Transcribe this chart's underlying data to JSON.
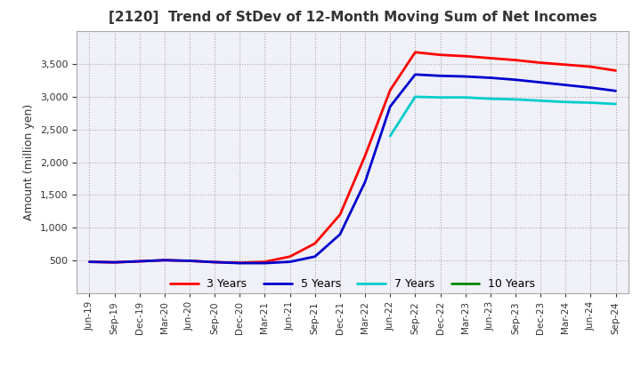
{
  "title": "[2120]  Trend of StDev of 12-Month Moving Sum of Net Incomes",
  "ylabel": "Amount (million yen)",
  "background_color": "#ffffff",
  "plot_bg_color": "#f0f0f8",
  "grid_color": "#aaaaaa",
  "legend_labels": [
    "3 Years",
    "5 Years",
    "7 Years",
    "10 Years"
  ],
  "legend_colors": [
    "#ff0000",
    "#0000cc",
    "#00cccc",
    "#008800"
  ],
  "x_labels": [
    "Jun-19",
    "Sep-19",
    "Dec-19",
    "Mar-20",
    "Jun-20",
    "Sep-20",
    "Dec-20",
    "Mar-21",
    "Jun-21",
    "Sep-21",
    "Dec-21",
    "Mar-22",
    "Jun-22",
    "Sep-22",
    "Dec-22",
    "Mar-23",
    "Jun-23",
    "Sep-23",
    "Dec-23",
    "Mar-24",
    "Jun-24",
    "Sep-24"
  ],
  "series_3y": [
    480,
    472,
    488,
    505,
    495,
    475,
    465,
    480,
    560,
    760,
    1200,
    2100,
    3100,
    3680,
    3640,
    3620,
    3590,
    3560,
    3520,
    3490,
    3460,
    3400
  ],
  "series_5y": [
    480,
    472,
    488,
    505,
    495,
    475,
    460,
    460,
    480,
    560,
    900,
    1700,
    2850,
    3340,
    3320,
    3310,
    3290,
    3260,
    3220,
    3180,
    3140,
    3090
  ],
  "series_7y": [
    null,
    null,
    null,
    null,
    null,
    null,
    null,
    null,
    null,
    null,
    null,
    null,
    2400,
    3000,
    2990,
    2990,
    2970,
    2960,
    2940,
    2920,
    2910,
    2890
  ],
  "series_10y": [
    null,
    null,
    null,
    null,
    null,
    null,
    null,
    null,
    null,
    null,
    null,
    null,
    null,
    null,
    null,
    null,
    null,
    null,
    null,
    null,
    null,
    null
  ],
  "ylim": [
    0,
    4000
  ],
  "yticks": [
    500,
    1000,
    1500,
    2000,
    2500,
    3000,
    3500
  ]
}
